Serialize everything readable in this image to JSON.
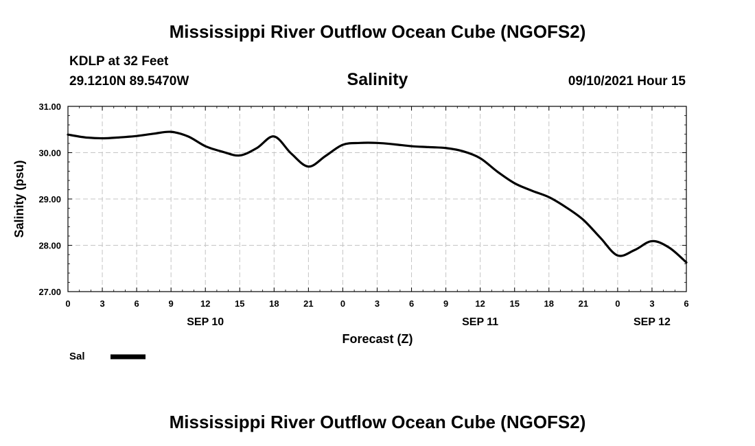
{
  "page": {
    "title_top": "Mississippi River Outflow Ocean Cube (NGOFS2)",
    "title_bottom": "Mississippi River Outflow Ocean Cube (NGOFS2)",
    "station": "KDLP at 32 Feet",
    "location": "29.1210N  89.5470W",
    "run_time": "09/10/2021 Hour 15"
  },
  "chart_data": {
    "type": "line",
    "title": "Salinity",
    "xlabel": "Forecast (Z)",
    "ylabel": "Salinity (psu)",
    "ylim": [
      27.0,
      31.0
    ],
    "xlim": [
      0,
      54
    ],
    "grid": true,
    "x_units": "hours from Sep 10 00Z",
    "y_ticks": [
      "27.00",
      "28.00",
      "29.00",
      "30.00",
      "31.00"
    ],
    "y_tick_values": [
      27.0,
      28.0,
      29.0,
      30.0,
      31.0
    ],
    "x_tick_values": [
      0,
      3,
      6,
      9,
      12,
      15,
      18,
      21,
      24,
      27,
      30,
      33,
      36,
      39,
      42,
      45,
      48,
      51,
      54
    ],
    "x_tick_labels": [
      "0",
      "3",
      "6",
      "9",
      "12",
      "15",
      "18",
      "21",
      "0",
      "3",
      "6",
      "9",
      "12",
      "15",
      "18",
      "21",
      "0",
      "3",
      "6"
    ],
    "date_labels": [
      {
        "label": "SEP 10",
        "x": 12
      },
      {
        "label": "SEP 11",
        "x": 36
      },
      {
        "label": "SEP 12",
        "x": 51
      }
    ],
    "legend": {
      "position": "bottom-left",
      "entries": [
        {
          "label": "Sal",
          "color": "#000000"
        }
      ]
    },
    "series": [
      {
        "name": "Sal",
        "color": "#000000",
        "x": [
          0,
          1.5,
          3,
          4.5,
          6,
          7.5,
          9,
          10.5,
          12,
          13.5,
          15,
          16.5,
          18,
          19.5,
          21,
          22.5,
          24,
          25.5,
          27,
          28.5,
          30,
          31.5,
          33,
          34.5,
          36,
          37.5,
          39,
          40.5,
          42,
          43.5,
          45,
          46.5,
          48,
          49.5,
          51,
          52.5,
          54
        ],
        "y": [
          30.39,
          30.33,
          30.31,
          30.33,
          30.36,
          30.41,
          30.45,
          30.35,
          30.14,
          30.02,
          29.94,
          30.1,
          30.35,
          29.98,
          29.7,
          29.93,
          30.17,
          30.21,
          30.21,
          30.18,
          30.14,
          30.12,
          30.1,
          30.03,
          29.88,
          29.59,
          29.34,
          29.18,
          29.04,
          28.82,
          28.55,
          28.16,
          27.78,
          27.9,
          28.09,
          27.95,
          27.63
        ]
      }
    ]
  }
}
